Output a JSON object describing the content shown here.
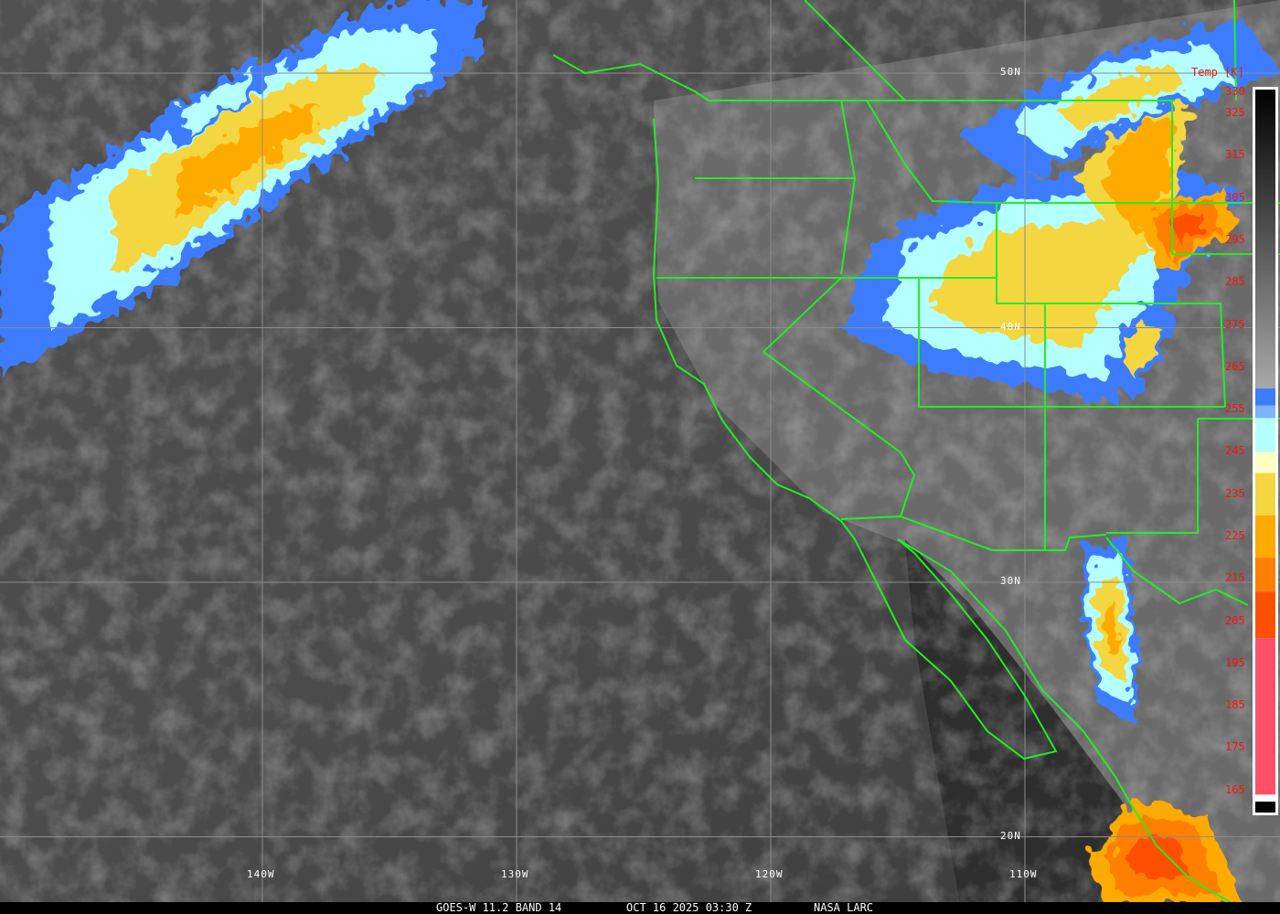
{
  "caption": {
    "satellite": "GOES-W 11.2 BAND 14",
    "datetime": "OCT 16 2025 03:30 Z",
    "credit": "NASA LARC"
  },
  "grid": {
    "longitudes": [
      {
        "value": -140,
        "label": "140W"
      },
      {
        "value": -130,
        "label": "130W"
      },
      {
        "value": -120,
        "label": "120W"
      },
      {
        "value": -110,
        "label": "110W"
      }
    ],
    "latitudes": [
      {
        "value": 50,
        "label": "50N"
      },
      {
        "value": 40,
        "label": "40N"
      },
      {
        "value": 30,
        "label": "30N"
      },
      {
        "value": 20,
        "label": "20N"
      }
    ],
    "line_color": "#8c8c8c"
  },
  "colorbar": {
    "title": "Temp [K]",
    "range": [
      330,
      163
    ],
    "ticks": [
      "330",
      "325",
      "315",
      "305",
      "295",
      "285",
      "275",
      "265",
      "255",
      "245",
      "235",
      "225",
      "215",
      "205",
      "195",
      "185",
      "175",
      "165"
    ],
    "gray_ramp": {
      "from": 330,
      "to": 260,
      "colors": [
        "#000000",
        "#a8a8a8"
      ]
    },
    "segments": [
      {
        "from": 260,
        "to": 256,
        "color": "#3c7cff"
      },
      {
        "from": 256,
        "to": 253,
        "color": "#7cb4ff"
      },
      {
        "from": 253,
        "to": 245,
        "color": "#b4ffff"
      },
      {
        "from": 245,
        "to": 240,
        "color": "#ffffc4"
      },
      {
        "from": 240,
        "to": 230,
        "color": "#f4d640"
      },
      {
        "from": 230,
        "to": 220,
        "color": "#ffaa00"
      },
      {
        "from": 220,
        "to": 212,
        "color": "#ff7f00"
      },
      {
        "from": 212,
        "to": 201,
        "color": "#ff5000"
      },
      {
        "from": 201,
        "to": 164,
        "color": "#ff5068"
      }
    ],
    "label_color": "#ff1010"
  },
  "colors": {
    "boundaries": "#22ee22",
    "ocean": "#484848",
    "land": "#6a6a6a"
  }
}
